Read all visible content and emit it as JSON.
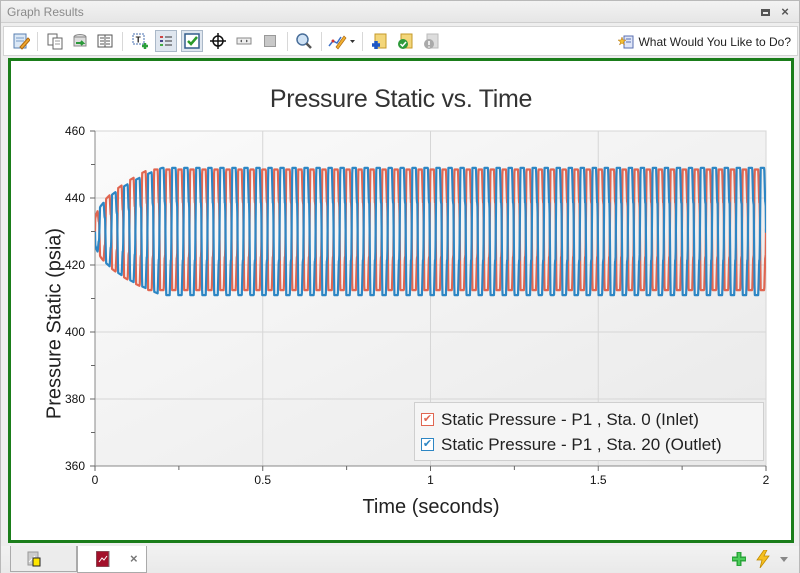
{
  "window": {
    "title": "Graph Results",
    "maximize_label": "maximize",
    "close_label": "×"
  },
  "toolbar": {
    "buttons": [
      {
        "name": "edit-graph-parameters",
        "icon": "pencil-notepad-icon"
      },
      {
        "name": "copy",
        "icon": "copy-icon"
      },
      {
        "name": "export",
        "icon": "export-icon"
      },
      {
        "name": "show-data-table",
        "icon": "table-icon"
      },
      {
        "name": "add-annotation",
        "icon": "text-add-icon"
      },
      {
        "name": "legend-toggle",
        "icon": "legend-icon",
        "pressed": true
      },
      {
        "name": "show-checkboxes",
        "icon": "checkbox-icon",
        "pressed": true
      },
      {
        "name": "crosshair",
        "icon": "crosshair-icon"
      },
      {
        "name": "scroll-bar",
        "icon": "scrollbar-icon"
      },
      {
        "name": "stop",
        "icon": "square-icon"
      },
      {
        "name": "zoom",
        "icon": "magnifier-icon"
      },
      {
        "name": "line-style",
        "icon": "line-style-icon"
      },
      {
        "name": "add-to-favorites",
        "icon": "folder-add-icon"
      },
      {
        "name": "favorites-check",
        "icon": "folder-check-icon"
      },
      {
        "name": "info-disabled",
        "icon": "info-disabled-icon"
      }
    ],
    "help_label": "What Would You Like to Do?"
  },
  "chart_data": {
    "type": "line",
    "title": "Pressure Static vs. Time",
    "xlabel": "Time (seconds)",
    "ylabel": "Pressure Static (psia)",
    "xlim": [
      0,
      2
    ],
    "ylim": [
      360,
      460
    ],
    "x_ticks": [
      0,
      0.5,
      1,
      1.5,
      2
    ],
    "x_tick_labels": [
      "0",
      "0.5",
      "1",
      "1.5",
      "2"
    ],
    "x_minor_ticks": [
      0.25,
      0.75,
      1.25,
      1.75
    ],
    "y_ticks": [
      360,
      380,
      400,
      420,
      440,
      460
    ],
    "y_tick_labels": [
      "360",
      "380",
      "400",
      "420",
      "440",
      "460"
    ],
    "y_minor_ticks": [
      370,
      390,
      410,
      430,
      450
    ],
    "grid": true,
    "legend_position": "lower right",
    "series": [
      {
        "name": "Static Pressure - P1 , Sta. 0 (Inlet)",
        "color": "#e06651",
        "start_value": 430,
        "steady_min": 412.5,
        "steady_max": 448.5,
        "period_s": 0.0358,
        "phase_s": 0.0,
        "ramp_time_s": 0.16
      },
      {
        "name": "Static Pressure - P1 , Sta. 20 (Outlet)",
        "color": "#2d86c4",
        "start_value": 430,
        "steady_min": 411,
        "steady_max": 449,
        "period_s": 0.0358,
        "phase_s": 0.0179,
        "ramp_time_s": 0.2
      }
    ]
  },
  "legend": {
    "items": [
      {
        "label": "Static Pressure - P1 , Sta. 0 (Inlet)",
        "color": "#e06651",
        "checked": true
      },
      {
        "label": "Static Pressure - P1 , Sta. 20 (Outlet)",
        "color": "#2d86c4",
        "checked": true
      }
    ]
  },
  "bottom_tabs": [
    {
      "name": "workspace-tab",
      "icon": "workspace-icon",
      "active": false
    },
    {
      "name": "graph-results-tab",
      "icon": "graph-icon",
      "active": true,
      "close_label": "×"
    }
  ],
  "bottom_icons": {
    "add": "plus-icon",
    "quick_access": "lightning-icon",
    "menu": "dropdown-arrow-icon"
  }
}
